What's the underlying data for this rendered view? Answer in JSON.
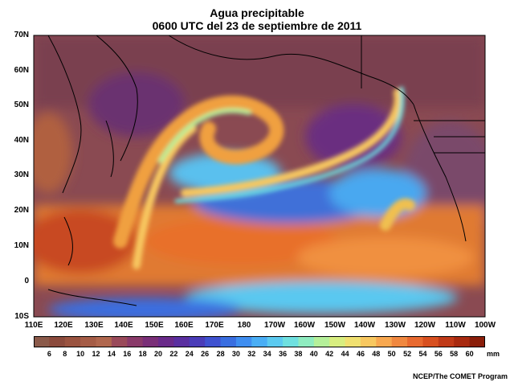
{
  "title": "Agua precipitable",
  "subtitle": "0600 UTC del 23 de septiembre de 2011",
  "lat_labels": [
    "70N",
    "60N",
    "50N",
    "40N",
    "30N",
    "20N",
    "10N",
    "0",
    "10S"
  ],
  "lon_labels": [
    "110E",
    "120E",
    "130E",
    "140E",
    "150E",
    "160E",
    "170E",
    "180",
    "170W",
    "160W",
    "150W",
    "140W",
    "130W",
    "120W",
    "110W",
    "100W"
  ],
  "colorbar": {
    "labels": [
      "6",
      "8",
      "10",
      "12",
      "14",
      "16",
      "18",
      "20",
      "22",
      "24",
      "26",
      "28",
      "30",
      "32",
      "34",
      "36",
      "38",
      "40",
      "42",
      "44",
      "46",
      "48",
      "50",
      "52",
      "54",
      "56",
      "58",
      "60"
    ],
    "units": "mm",
    "colors": [
      "#8b4a3c",
      "#9a5340",
      "#a55c46",
      "#b0674e",
      "#9a4a5a",
      "#8a3a6a",
      "#7a2f78",
      "#6a2a8a",
      "#5a2fa0",
      "#4a3cb8",
      "#3f52d0",
      "#3a6ee0",
      "#3f8ef0",
      "#4aaef5",
      "#5ccaf0",
      "#6fe0e0",
      "#8fecc0",
      "#b5f09a",
      "#d8ee80",
      "#f0e070",
      "#f8c860",
      "#f8a850",
      "#f08840",
      "#e86a30",
      "#d85020",
      "#c03a18",
      "#a82a10",
      "#8a1e0a"
    ]
  },
  "credit": "NCEP/The COMET Program"
}
